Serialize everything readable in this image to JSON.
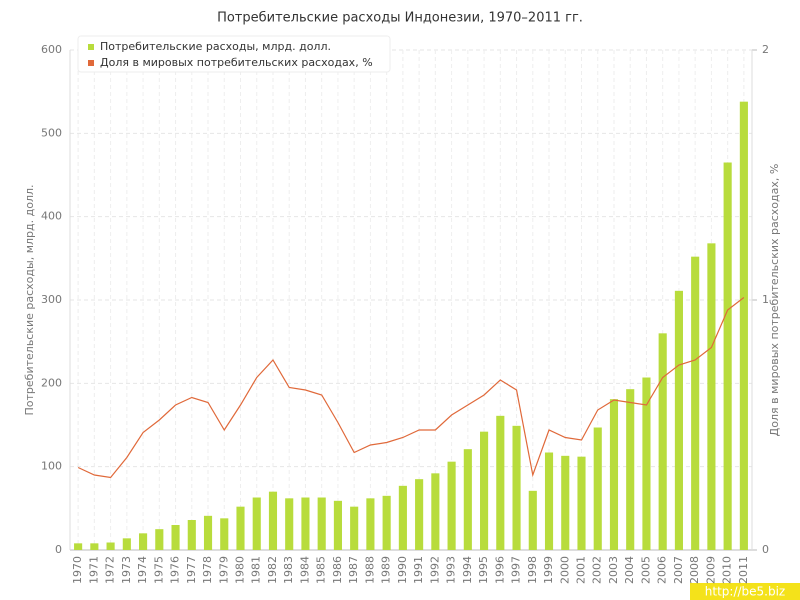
{
  "chart_data": {
    "type": "bar",
    "title": "Потребительские расходы Индонезии, 1970–2011 гг.",
    "ylabel": "Потребительские расходы, млрд. долл.",
    "y2label": "Доля в мировых потребительских расходах, %",
    "watermark": "http://be5.biz",
    "legend": "top-left",
    "grid": true,
    "categories": [
      "1970",
      "1971",
      "1972",
      "1973",
      "1974",
      "1975",
      "1976",
      "1977",
      "1978",
      "1979",
      "1980",
      "1981",
      "1982",
      "1983",
      "1984",
      "1985",
      "1986",
      "1987",
      "1988",
      "1989",
      "1990",
      "1991",
      "1992",
      "1993",
      "1994",
      "1995",
      "1996",
      "1997",
      "1998",
      "1999",
      "2000",
      "2001",
      "2002",
      "2003",
      "2004",
      "2005",
      "2006",
      "2007",
      "2008",
      "2009",
      "2010",
      "2011"
    ],
    "series": [
      {
        "name": "Потребительские расходы, млрд. долл.",
        "type": "bar",
        "color": "#b8dc3c",
        "values": [
          8,
          8,
          9,
          14,
          20,
          25,
          30,
          36,
          41,
          38,
          52,
          63,
          70,
          62,
          63,
          63,
          59,
          52,
          62,
          65,
          77,
          85,
          92,
          106,
          121,
          142,
          161,
          149,
          71,
          117,
          113,
          112,
          147,
          181,
          193,
          207,
          260,
          311,
          352,
          368,
          465,
          538
        ]
      },
      {
        "name": "Доля в мировых потребительских расходах, %",
        "type": "line",
        "axis": "y2",
        "color": "#e0693a",
        "values": [
          0.33,
          0.3,
          0.29,
          0.37,
          0.47,
          0.52,
          0.58,
          0.61,
          0.59,
          0.48,
          0.58,
          0.69,
          0.76,
          0.65,
          0.64,
          0.62,
          0.51,
          0.39,
          0.42,
          0.43,
          0.45,
          0.48,
          0.48,
          0.54,
          0.58,
          0.62,
          0.68,
          0.64,
          0.3,
          0.48,
          0.45,
          0.44,
          0.56,
          0.6,
          0.59,
          0.58,
          0.69,
          0.74,
          0.76,
          0.81,
          0.96,
          1.01
        ]
      }
    ],
    "ylim": [
      0,
      600
    ],
    "yticks": [
      0,
      100,
      200,
      300,
      400,
      500,
      600
    ],
    "y2lim": [
      0,
      2
    ],
    "y2ticks": [
      0,
      1,
      2
    ]
  }
}
